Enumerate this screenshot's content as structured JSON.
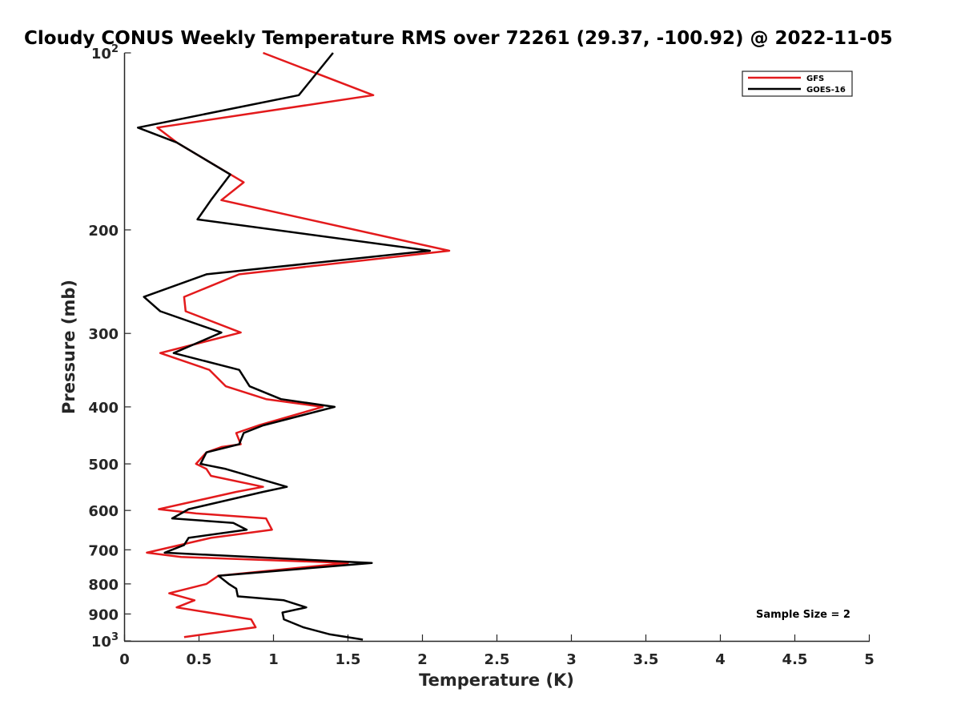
{
  "chart_data": {
    "type": "line",
    "title": "Cloudy CONUS Weekly Temperature RMS over 72261 (29.37, -100.92) @ 2022-11-05",
    "xlabel": "Temperature (K)",
    "ylabel": "Pressure (mb)",
    "xlim": [
      0,
      5
    ],
    "ylim": [
      100,
      1000
    ],
    "y_scale": "log",
    "y_reversed": true,
    "grid": false,
    "legend_position": "top-right",
    "x_ticks": [
      "0",
      "0.5",
      "1",
      "1.5",
      "2",
      "2.5",
      "3",
      "3.5",
      "4",
      "4.5",
      "5"
    ],
    "y_ticks": [
      {
        "value": 100,
        "base": "10",
        "exp": "2"
      },
      {
        "value": 200,
        "label": "200"
      },
      {
        "value": 300,
        "label": "300"
      },
      {
        "value": 400,
        "label": "400"
      },
      {
        "value": 500,
        "label": "500"
      },
      {
        "value": 600,
        "label": "600"
      },
      {
        "value": 700,
        "label": "700"
      },
      {
        "value": 800,
        "label": "800"
      },
      {
        "value": 900,
        "label": "900"
      },
      {
        "value": 1000,
        "base": "10",
        "exp": "3"
      }
    ],
    "annotation": "Sample Size = 2",
    "series": [
      {
        "name": "GFS",
        "color": "#e31a1c",
        "points": [
          [
            0.93,
            100
          ],
          [
            1.67,
            118
          ],
          [
            0.22,
            134
          ],
          [
            0.35,
            142
          ],
          [
            0.8,
            166
          ],
          [
            0.65,
            178
          ],
          [
            2.18,
            217
          ],
          [
            0.77,
            238
          ],
          [
            0.4,
            260
          ],
          [
            0.41,
            275
          ],
          [
            0.78,
            299
          ],
          [
            0.24,
            324
          ],
          [
            0.57,
            346
          ],
          [
            0.68,
            369
          ],
          [
            0.95,
            388
          ],
          [
            1.33,
            400
          ],
          [
            0.9,
            430
          ],
          [
            0.75,
            443
          ],
          [
            0.78,
            463
          ],
          [
            0.65,
            468
          ],
          [
            0.55,
            478
          ],
          [
            0.48,
            500
          ],
          [
            0.55,
            510
          ],
          [
            0.58,
            524
          ],
          [
            0.93,
            547
          ],
          [
            0.75,
            558
          ],
          [
            0.23,
            597
          ],
          [
            0.48,
            607
          ],
          [
            0.95,
            619
          ],
          [
            0.99,
            647
          ],
          [
            0.58,
            668
          ],
          [
            0.15,
            708
          ],
          [
            0.38,
            720
          ],
          [
            1.5,
            737
          ],
          [
            0.63,
            775
          ],
          [
            0.55,
            800
          ],
          [
            0.3,
            830
          ],
          [
            0.47,
            853
          ],
          [
            0.35,
            877
          ],
          [
            0.85,
            919
          ],
          [
            0.88,
            948
          ],
          [
            0.4,
            985
          ]
        ]
      },
      {
        "name": "GOES-16",
        "color": "#000000",
        "points": [
          [
            1.4,
            100
          ],
          [
            1.17,
            118
          ],
          [
            0.09,
            134
          ],
          [
            0.35,
            142
          ],
          [
            0.71,
            161
          ],
          [
            0.58,
            178
          ],
          [
            0.49,
            192
          ],
          [
            2.05,
            217
          ],
          [
            0.55,
            238
          ],
          [
            0.13,
            260
          ],
          [
            0.24,
            275
          ],
          [
            0.65,
            299
          ],
          [
            0.33,
            324
          ],
          [
            0.77,
            346
          ],
          [
            0.84,
            369
          ],
          [
            1.05,
            388
          ],
          [
            1.41,
            400
          ],
          [
            0.93,
            430
          ],
          [
            0.8,
            443
          ],
          [
            0.77,
            463
          ],
          [
            0.55,
            478
          ],
          [
            0.51,
            500
          ],
          [
            0.68,
            510
          ],
          [
            1.09,
            547
          ],
          [
            0.93,
            558
          ],
          [
            0.43,
            597
          ],
          [
            0.32,
            619
          ],
          [
            0.73,
            630
          ],
          [
            0.82,
            647
          ],
          [
            0.43,
            668
          ],
          [
            0.4,
            687
          ],
          [
            0.27,
            708
          ],
          [
            1.66,
            737
          ],
          [
            0.63,
            775
          ],
          [
            0.7,
            800
          ],
          [
            0.75,
            815
          ],
          [
            0.76,
            840
          ],
          [
            1.07,
            853
          ],
          [
            1.22,
            877
          ],
          [
            1.06,
            895
          ],
          [
            1.07,
            919
          ],
          [
            1.2,
            948
          ],
          [
            1.38,
            975
          ],
          [
            1.6,
            995
          ]
        ]
      }
    ]
  }
}
